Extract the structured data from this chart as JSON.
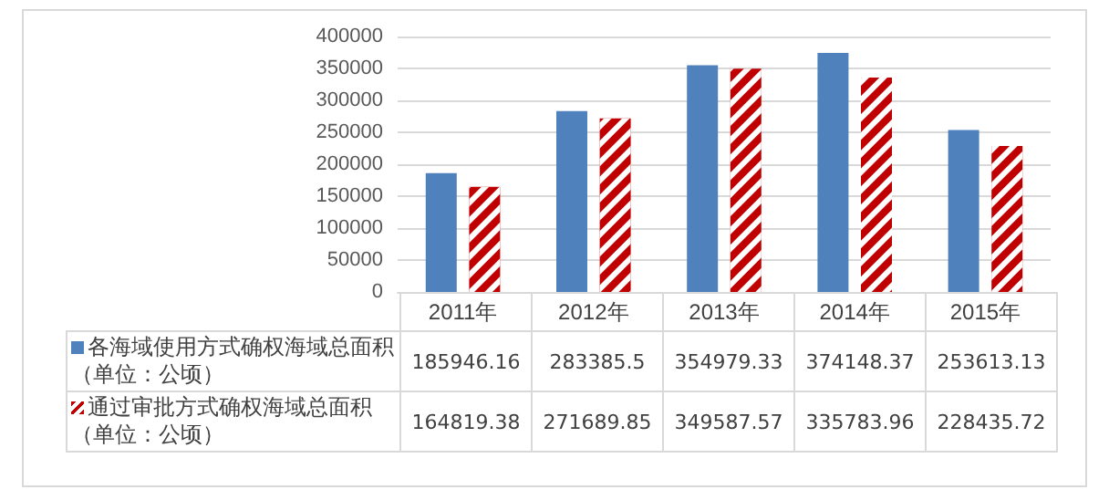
{
  "chart_data": {
    "type": "bar",
    "categories": [
      "2011年",
      "2012年",
      "2013年",
      "2014年",
      "2015年"
    ],
    "series": [
      {
        "name": "各海域使用方式确权海域总面积（单位：公顷）",
        "color": "#4f81bd",
        "values": [
          185946.16,
          283385.5,
          354979.33,
          374148.37,
          253613.13
        ]
      },
      {
        "name": "通过审批方式确权海域总面积（单位：公顷）",
        "color": "#c00000",
        "values": [
          164819.38,
          271689.85,
          349587.57,
          335783.96,
          228435.72
        ]
      }
    ],
    "ylim": [
      0,
      400000
    ],
    "yticks": [
      0,
      50000,
      100000,
      150000,
      200000,
      250000,
      300000,
      350000,
      400000
    ],
    "grid": "y",
    "legend": "bottom left",
    "data_labels": true
  }
}
